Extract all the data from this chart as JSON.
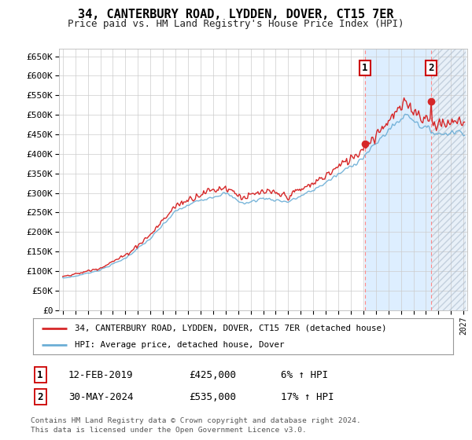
{
  "title": "34, CANTERBURY ROAD, LYDDEN, DOVER, CT15 7ER",
  "subtitle": "Price paid vs. HM Land Registry's House Price Index (HPI)",
  "yticks": [
    0,
    50000,
    100000,
    150000,
    200000,
    250000,
    300000,
    350000,
    400000,
    450000,
    500000,
    550000,
    600000,
    650000
  ],
  "ytick_labels": [
    "£0",
    "£50K",
    "£100K",
    "£150K",
    "£200K",
    "£250K",
    "£300K",
    "£350K",
    "£400K",
    "£450K",
    "£500K",
    "£550K",
    "£600K",
    "£650K"
  ],
  "hpi_color": "#6baed6",
  "price_color": "#d62728",
  "sale1_year": 2019.12,
  "sale1_price": 425000,
  "sale1_date": "12-FEB-2019",
  "sale1_pct": "6%",
  "sale2_year": 2024.41,
  "sale2_price": 535000,
  "sale2_date": "30-MAY-2024",
  "sale2_pct": "17%",
  "legend_label1": "34, CANTERBURY ROAD, LYDDEN, DOVER, CT15 7ER (detached house)",
  "legend_label2": "HPI: Average price, detached house, Dover",
  "footer1": "Contains HM Land Registry data © Crown copyright and database right 2024.",
  "footer2": "This data is licensed under the Open Government Licence v3.0.",
  "plot_bg_color": "#ffffff",
  "blue_shade_color": "#ddeeff",
  "hatch_bg_color": "#e8f0f8",
  "grid_color": "#cccccc",
  "vline_color": "#ff8888"
}
